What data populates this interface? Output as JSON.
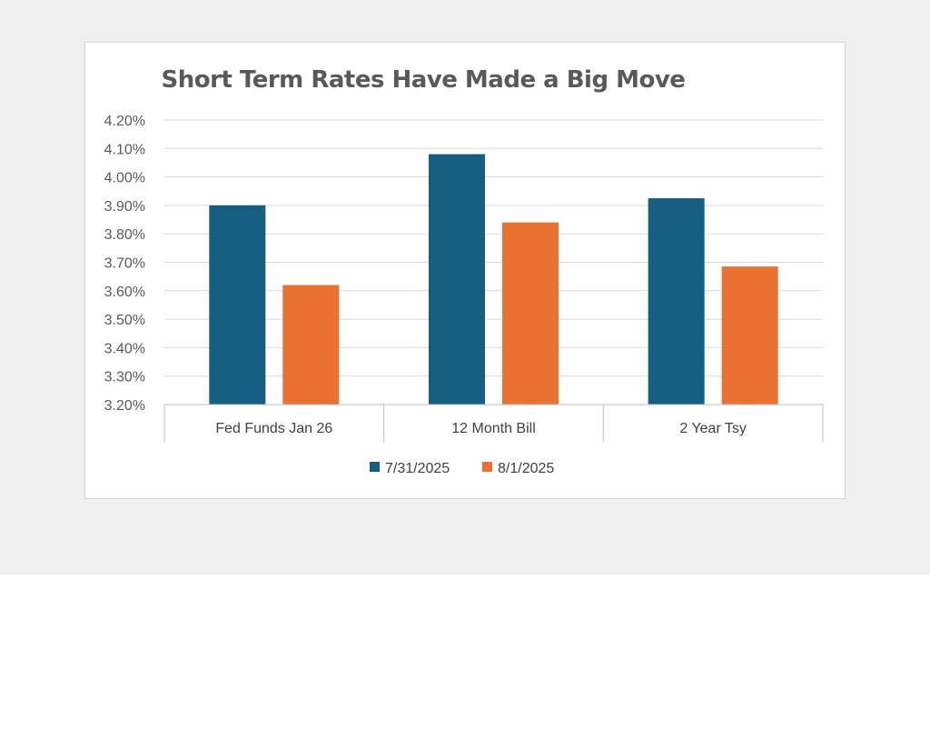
{
  "chart_data": {
    "type": "bar",
    "title": "Short Term Rates Have Made a Big Move",
    "categories": [
      "Fed Funds Jan 26",
      "12 Month Bill",
      "2  Year Tsy"
    ],
    "series": [
      {
        "name": "7/31/2025",
        "color": "#175f82",
        "values": [
          3.9,
          4.08,
          3.925
        ]
      },
      {
        "name": "8/1/2025",
        "color": "#e97132",
        "values": [
          3.62,
          3.84,
          3.685
        ]
      }
    ],
    "yticks": [
      "4.20%",
      "4.10%",
      "4.00%",
      "3.90%",
      "3.80%",
      "3.70%",
      "3.60%",
      "3.50%",
      "3.40%",
      "3.30%",
      "3.20%"
    ],
    "ylim": [
      3.2,
      4.2
    ],
    "grid": true,
    "legend_position": "bottom"
  }
}
